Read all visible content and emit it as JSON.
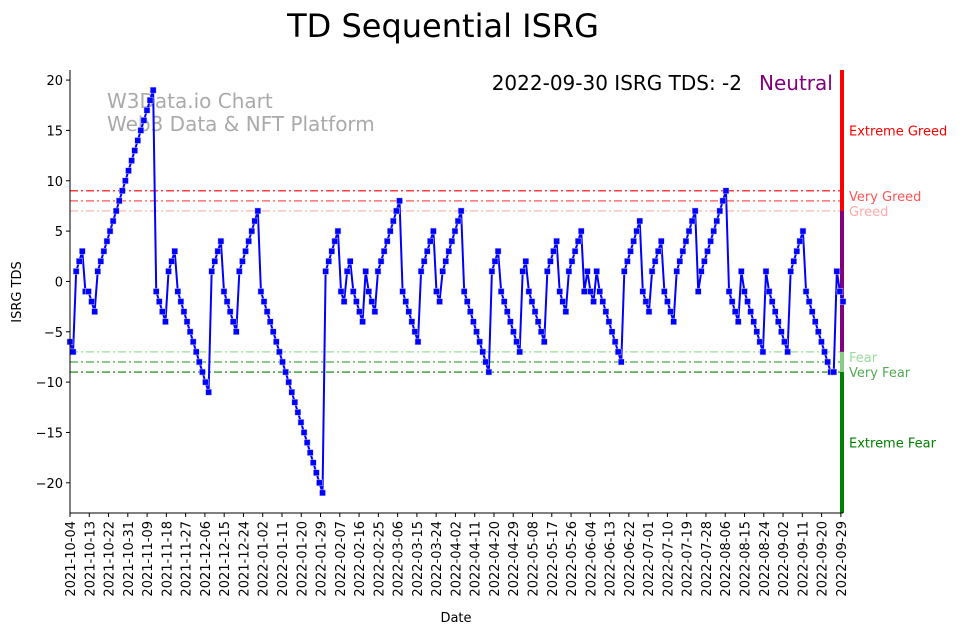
{
  "chart_data": {
    "type": "line",
    "title": "TD Sequential ISRG",
    "xlabel": "Date",
    "ylabel": "ISRG TDS",
    "ylim": [
      -23,
      21
    ],
    "xlim": [
      "2021-10-04",
      "2022-09-30"
    ],
    "yticks": [
      20,
      15,
      10,
      5,
      0,
      -5,
      -10,
      -15,
      -20
    ],
    "xtick_start": "2021-10-04",
    "xtick_step_days": 9,
    "xtick_count": 41,
    "series": [
      {
        "name": "ISRG TDS",
        "color": "#0000ff",
        "start_date": "2021-10-04",
        "end_date": "2022-09-30",
        "values": [
          -6,
          -7,
          1,
          2,
          3,
          -1,
          -1,
          -2,
          -3,
          1,
          2,
          3,
          4,
          5,
          6,
          7,
          8,
          9,
          10,
          11,
          12,
          13,
          14,
          15,
          16,
          17,
          18,
          19,
          -1,
          -2,
          -3,
          -4,
          1,
          2,
          3,
          -1,
          -2,
          -3,
          -4,
          -5,
          -6,
          -7,
          -8,
          -9,
          -10,
          -11,
          1,
          2,
          3,
          4,
          -1,
          -2,
          -3,
          -4,
          -5,
          1,
          2,
          3,
          4,
          5,
          6,
          7,
          -1,
          -2,
          -3,
          -4,
          -5,
          -6,
          -7,
          -8,
          -9,
          -10,
          -11,
          -12,
          -13,
          -14,
          -15,
          -16,
          -17,
          -18,
          -19,
          -20,
          -21,
          1,
          2,
          3,
          4,
          5,
          -1,
          -2,
          1,
          2,
          -1,
          -2,
          -3,
          -4,
          1,
          -1,
          -2,
          -3,
          1,
          2,
          3,
          4,
          5,
          6,
          7,
          8,
          -1,
          -2,
          -3,
          -4,
          -5,
          -6,
          1,
          2,
          3,
          4,
          5,
          -1,
          -2,
          1,
          2,
          3,
          4,
          5,
          6,
          7,
          -1,
          -2,
          -3,
          -4,
          -5,
          -6,
          -7,
          -8,
          -9,
          1,
          2,
          3,
          -1,
          -2,
          -3,
          -4,
          -5,
          -6,
          -7,
          1,
          2,
          -1,
          -2,
          -3,
          -4,
          -5,
          -6,
          1,
          2,
          3,
          4,
          -1,
          -2,
          -3,
          1,
          2,
          3,
          4,
          5,
          -1,
          1,
          -1,
          -2,
          1,
          -1,
          -2,
          -3,
          -4,
          -5,
          -6,
          -7,
          -8,
          1,
          2,
          3,
          4,
          5,
          6,
          -1,
          -2,
          -3,
          1,
          2,
          3,
          4,
          -1,
          -2,
          -3,
          -4,
          1,
          2,
          3,
          4,
          5,
          6,
          7,
          -1,
          1,
          2,
          3,
          4,
          5,
          6,
          7,
          8,
          9,
          -1,
          -2,
          -3,
          -4,
          1,
          -1,
          -2,
          -3,
          -4,
          -5,
          -6,
          -7,
          1,
          -1,
          -2,
          -3,
          -4,
          -5,
          -6,
          -7,
          1,
          2,
          3,
          4,
          5,
          -1,
          -2,
          -3,
          -4,
          -5,
          -6,
          -7,
          -8,
          -9,
          -9,
          1,
          -1,
          -2
        ]
      }
    ],
    "thresholds": [
      {
        "value": 9,
        "label": "Very Greed",
        "color": "#ff0000"
      },
      {
        "value": 8,
        "label": "",
        "color": "#ff5555"
      },
      {
        "value": 7,
        "label": "Greed",
        "color": "#ffaaaa"
      },
      {
        "value": -7,
        "label": "Fear",
        "color": "#99dd99"
      },
      {
        "value": -8,
        "label": "Very Fear",
        "color": "#44aa44"
      },
      {
        "value": -9,
        "label": "",
        "color": "#008000"
      }
    ],
    "zone_labels": [
      {
        "label": "Extreme Greed",
        "value": 15,
        "color": "#ff0000"
      },
      {
        "label": "Very Greed",
        "value": 8.5,
        "color": "#ff5555"
      },
      {
        "label": "Greed",
        "value": 7.5,
        "color": "#ffaaaa"
      },
      {
        "label": "Fear",
        "value": -7.5,
        "color": "#99dd99"
      },
      {
        "label": "Very Fear",
        "value": -8.5,
        "color": "#55aa55"
      },
      {
        "label": "Extreme Fear",
        "value": -16,
        "color": "#008000"
      }
    ],
    "zone_bar": [
      {
        "from": 21,
        "to": 7,
        "color": "#ff0000"
      },
      {
        "from": 7,
        "to": -7,
        "color": "#800080"
      },
      {
        "from": -7,
        "to": -9,
        "color": "#88cc88"
      },
      {
        "from": -9,
        "to": -23,
        "color": "#008000"
      }
    ],
    "annotation": {
      "text": "2022-09-30 ISRG TDS: -2",
      "status": "Neutral",
      "status_color": "#800080"
    },
    "watermark": [
      "W3Data.io Chart",
      "Web3 Data & NFT Platform"
    ]
  }
}
